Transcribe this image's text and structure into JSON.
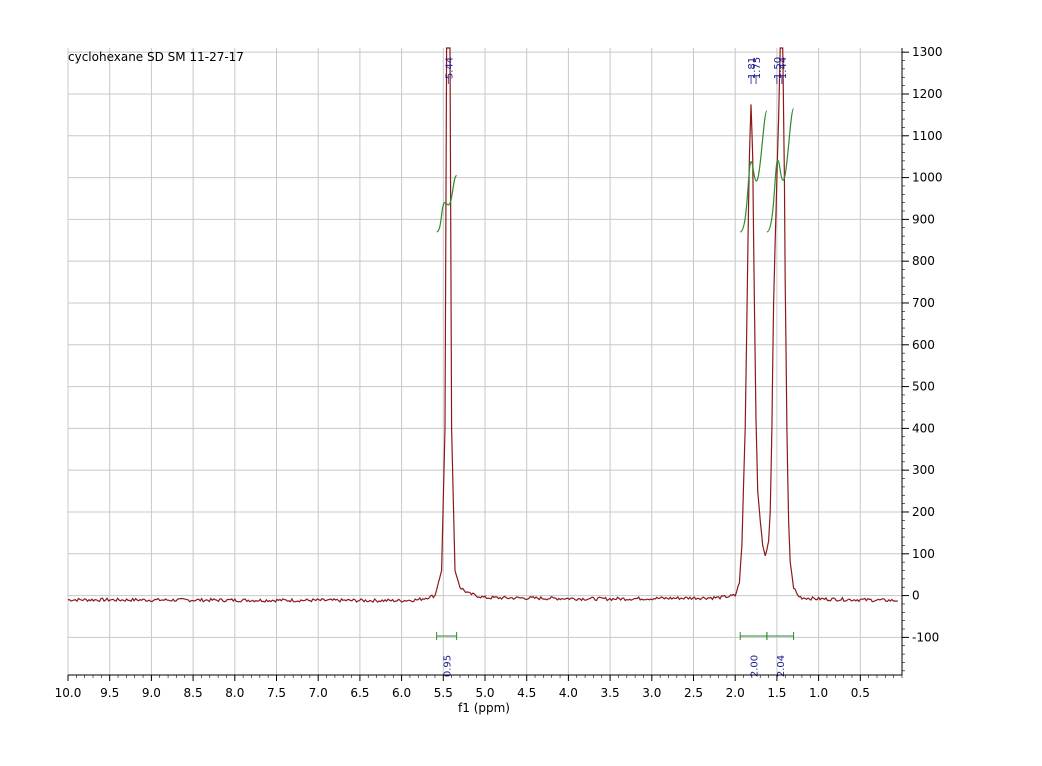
{
  "chart_data": {
    "type": "line",
    "title": "cyclohexane SD SM 11-27-17",
    "xlabel": "f1 (ppm)",
    "ylabel": "",
    "xlim": [
      10.0,
      0.0
    ],
    "ylim": [
      -190,
      1310
    ],
    "x_reversed": true,
    "grid": true,
    "x_ticks": [
      "10.0",
      "9.5",
      "9.0",
      "8.5",
      "8.0",
      "7.5",
      "7.0",
      "6.5",
      "6.0",
      "5.5",
      "5.0",
      "4.5",
      "4.0",
      "3.5",
      "3.0",
      "2.5",
      "2.0",
      "1.5",
      "1.0",
      "0.5"
    ],
    "x_tick_values": [
      10.0,
      9.5,
      9.0,
      8.5,
      8.0,
      7.5,
      7.0,
      6.5,
      6.0,
      5.5,
      5.0,
      4.5,
      4.0,
      3.5,
      3.0,
      2.5,
      2.0,
      1.5,
      1.0,
      0.5
    ],
    "y_ticks": [
      "1300",
      "1200",
      "1100",
      "1000",
      "900",
      "800",
      "700",
      "600",
      "500",
      "400",
      "300",
      "200",
      "100",
      "0",
      "-100"
    ],
    "y_tick_values": [
      1300,
      1200,
      1100,
      1000,
      900,
      800,
      700,
      600,
      500,
      400,
      300,
      200,
      100,
      0,
      -100
    ],
    "series": [
      {
        "color": "#8b1a1a",
        "baseline": -10,
        "x": [
          10.0,
          6.0,
          5.8,
          5.6,
          5.52,
          5.48,
          5.46,
          5.45,
          5.44,
          5.43,
          5.42,
          5.4,
          5.36,
          5.3,
          5.2,
          5.0,
          3.5,
          2.2,
          2.0,
          1.95,
          1.92,
          1.88,
          1.85,
          1.83,
          1.81,
          1.79,
          1.77,
          1.75,
          1.73,
          1.7,
          1.67,
          1.64,
          1.62,
          1.6,
          1.58,
          1.56,
          1.54,
          1.52,
          1.5,
          1.48,
          1.46,
          1.45,
          1.44,
          1.43,
          1.42,
          1.41,
          1.4,
          1.38,
          1.36,
          1.34,
          1.3,
          1.25,
          1.2,
          1.0,
          0.5,
          0.05
        ],
        "y": [
          -10,
          -12,
          -10,
          0,
          60,
          400,
          1310,
          1310,
          1310,
          1310,
          1310,
          400,
          60,
          20,
          5,
          -5,
          -8,
          -5,
          0,
          30,
          120,
          400,
          800,
          1050,
          1175,
          1050,
          700,
          420,
          250,
          180,
          120,
          95,
          110,
          130,
          200,
          400,
          700,
          850,
          1000,
          1140,
          1310,
          1310,
          1310,
          1310,
          1150,
          1000,
          750,
          400,
          180,
          80,
          20,
          0,
          -5,
          -8,
          -10,
          -12
        ]
      }
    ],
    "peak_labels": [
      {
        "text": "5.44",
        "x": 5.44
      },
      {
        "text": "1.81",
        "x": 1.81
      },
      {
        "text": "1.75",
        "x": 1.75
      },
      {
        "text": "1.50",
        "x": 1.5
      },
      {
        "text": "1.44",
        "x": 1.44
      }
    ],
    "integrals": [
      {
        "label": "0.95",
        "from": 5.58,
        "to": 5.34,
        "curve_start": 870,
        "curve_end": 1005,
        "color": "#2e8b2e"
      },
      {
        "label": "2.00",
        "from": 1.94,
        "to": 1.62,
        "curve_start": 870,
        "curve_end": 1160,
        "color": "#2e8b2e"
      },
      {
        "label": "2.04",
        "from": 1.62,
        "to": 1.3,
        "curve_start": 870,
        "curve_end": 1165,
        "color": "#2e8b2e"
      }
    ],
    "integral_label_color": "#1a1a8b",
    "peak_label_color": "#1a1a8b",
    "grid_color": "#c8c8c8"
  }
}
